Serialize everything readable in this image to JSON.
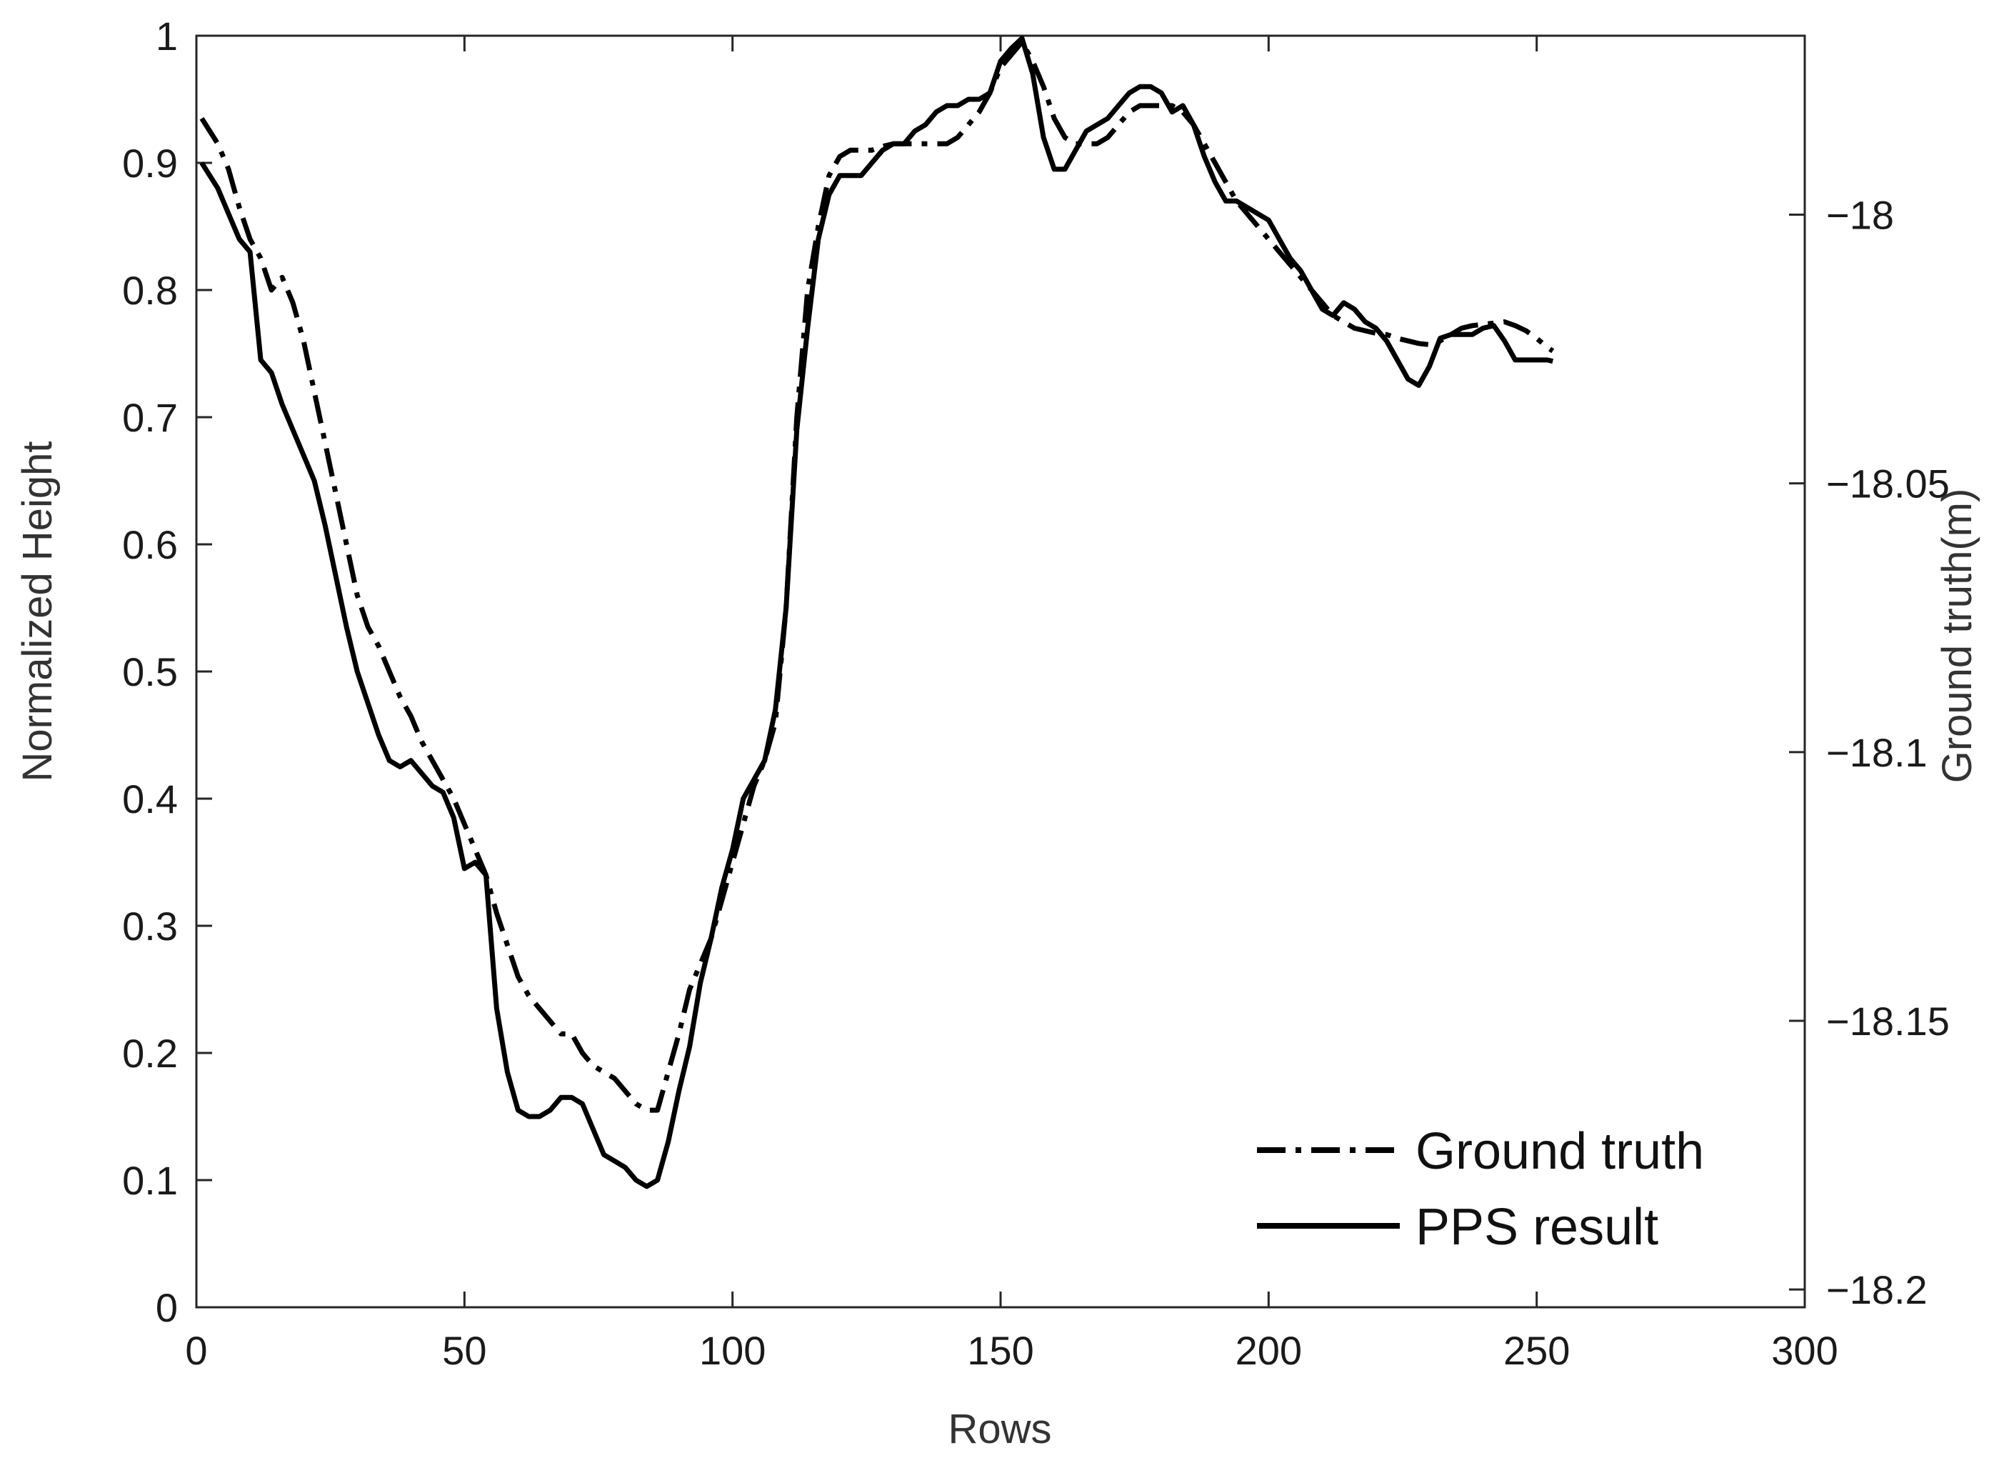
{
  "chart_data": {
    "type": "line",
    "xlabel": "Rows",
    "ylabel": "Normalized Height",
    "y2label": "Ground truth(m)",
    "xlim": [
      0,
      300
    ],
    "ylim": [
      0,
      1
    ],
    "y2lim": [
      -18.2033,
      -17.9667
    ],
    "xticks": [
      0,
      50,
      100,
      150,
      200,
      250,
      300
    ],
    "yticks": [
      0,
      0.1,
      0.2,
      0.3,
      0.4,
      0.5,
      0.6,
      0.7,
      0.8,
      0.9,
      1
    ],
    "y2ticks": [
      -18,
      -18.05,
      -18.1,
      -18.15,
      -18.2
    ],
    "grid": false,
    "legend_position": "bottom-right",
    "series": [
      {
        "name": "Ground truth",
        "style": "dash-dot",
        "color": "#000000",
        "x": [
          1,
          4,
          6,
          8,
          10,
          12,
          14,
          16,
          18,
          20,
          22,
          24,
          26,
          28,
          30,
          32,
          34,
          36,
          38,
          40,
          42,
          44,
          46,
          48,
          50,
          52,
          54,
          56,
          58,
          60,
          62,
          64,
          66,
          68,
          70,
          72,
          74,
          76,
          78,
          80,
          82,
          84,
          86,
          88,
          90,
          92,
          94,
          96,
          98,
          100,
          102,
          104,
          106,
          108,
          110,
          112,
          114,
          116,
          118,
          120,
          122,
          124,
          126,
          128,
          130,
          132,
          134,
          136,
          138,
          140,
          142,
          144,
          146,
          148,
          150,
          152,
          154,
          156,
          158,
          160,
          162,
          164,
          166,
          168,
          170,
          172,
          174,
          176,
          178,
          180,
          182,
          184,
          186,
          188,
          190,
          192,
          194,
          196,
          198,
          200,
          202,
          204,
          206,
          208,
          210,
          212,
          214,
          216,
          218,
          220,
          222,
          224,
          226,
          228,
          230,
          232,
          234,
          236,
          238,
          240,
          242,
          244,
          246,
          248,
          250,
          252,
          253
        ],
        "values": [
          0.935,
          0.915,
          0.895,
          0.865,
          0.84,
          0.825,
          0.8,
          0.81,
          0.79,
          0.76,
          0.72,
          0.68,
          0.64,
          0.6,
          0.56,
          0.535,
          0.52,
          0.5,
          0.48,
          0.465,
          0.445,
          0.43,
          0.415,
          0.4,
          0.38,
          0.36,
          0.34,
          0.31,
          0.285,
          0.26,
          0.245,
          0.235,
          0.225,
          0.215,
          0.215,
          0.2,
          0.19,
          0.185,
          0.18,
          0.17,
          0.16,
          0.155,
          0.155,
          0.185,
          0.215,
          0.25,
          0.27,
          0.29,
          0.32,
          0.35,
          0.38,
          0.41,
          0.43,
          0.46,
          0.55,
          0.7,
          0.8,
          0.85,
          0.89,
          0.905,
          0.91,
          0.91,
          0.91,
          0.913,
          0.915,
          0.915,
          0.915,
          0.915,
          0.915,
          0.915,
          0.92,
          0.93,
          0.94,
          0.955,
          0.975,
          0.985,
          0.995,
          0.98,
          0.96,
          0.935,
          0.92,
          0.915,
          0.915,
          0.915,
          0.92,
          0.93,
          0.94,
          0.945,
          0.945,
          0.945,
          0.945,
          0.94,
          0.93,
          0.915,
          0.9,
          0.885,
          0.87,
          0.86,
          0.85,
          0.84,
          0.83,
          0.82,
          0.81,
          0.8,
          0.79,
          0.78,
          0.775,
          0.77,
          0.768,
          0.766,
          0.765,
          0.762,
          0.76,
          0.758,
          0.757,
          0.76,
          0.765,
          0.77,
          0.772,
          0.773,
          0.774,
          0.775,
          0.772,
          0.768,
          0.762,
          0.755,
          0.752
        ]
      },
      {
        "name": "PPS result",
        "style": "solid",
        "color": "#000000",
        "x": [
          1,
          4,
          6,
          8,
          10,
          12,
          14,
          16,
          18,
          20,
          22,
          24,
          26,
          28,
          30,
          32,
          34,
          36,
          38,
          40,
          42,
          44,
          46,
          48,
          50,
          52,
          54,
          56,
          58,
          60,
          62,
          64,
          66,
          68,
          70,
          72,
          74,
          76,
          78,
          80,
          82,
          84,
          86,
          88,
          90,
          92,
          94,
          96,
          98,
          100,
          102,
          104,
          106,
          108,
          110,
          112,
          114,
          116,
          118,
          120,
          122,
          124,
          126,
          128,
          130,
          132,
          134,
          136,
          138,
          140,
          142,
          144,
          146,
          148,
          150,
          152,
          154,
          156,
          158,
          160,
          162,
          164,
          166,
          168,
          170,
          172,
          174,
          176,
          178,
          180,
          182,
          184,
          186,
          188,
          190,
          192,
          194,
          196,
          198,
          200,
          202,
          204,
          206,
          208,
          210,
          212,
          214,
          216,
          218,
          220,
          222,
          224,
          226,
          228,
          230,
          232,
          234,
          236,
          238,
          240,
          242,
          244,
          246,
          248,
          250,
          252,
          253
        ],
        "values": [
          0.9,
          0.88,
          0.86,
          0.84,
          0.83,
          0.745,
          0.735,
          0.71,
          0.69,
          0.67,
          0.65,
          0.615,
          0.575,
          0.535,
          0.5,
          0.475,
          0.45,
          0.43,
          0.425,
          0.43,
          0.42,
          0.41,
          0.405,
          0.385,
          0.345,
          0.35,
          0.34,
          0.235,
          0.185,
          0.155,
          0.15,
          0.15,
          0.155,
          0.165,
          0.165,
          0.16,
          0.14,
          0.12,
          0.115,
          0.11,
          0.1,
          0.095,
          0.1,
          0.13,
          0.17,
          0.205,
          0.255,
          0.29,
          0.33,
          0.36,
          0.4,
          0.415,
          0.43,
          0.47,
          0.55,
          0.69,
          0.77,
          0.84,
          0.875,
          0.89,
          0.89,
          0.89,
          0.9,
          0.91,
          0.915,
          0.915,
          0.925,
          0.93,
          0.94,
          0.945,
          0.945,
          0.95,
          0.95,
          0.955,
          0.98,
          0.99,
          0.998,
          0.97,
          0.92,
          0.895,
          0.895,
          0.91,
          0.925,
          0.93,
          0.935,
          0.945,
          0.955,
          0.96,
          0.96,
          0.955,
          0.94,
          0.945,
          0.93,
          0.905,
          0.885,
          0.87,
          0.87,
          0.865,
          0.86,
          0.855,
          0.84,
          0.825,
          0.815,
          0.8,
          0.785,
          0.78,
          0.79,
          0.785,
          0.775,
          0.77,
          0.76,
          0.745,
          0.73,
          0.725,
          0.74,
          0.762,
          0.765,
          0.765,
          0.765,
          0.77,
          0.772,
          0.76,
          0.745,
          0.745,
          0.745,
          0.745,
          0.744
        ]
      }
    ]
  }
}
